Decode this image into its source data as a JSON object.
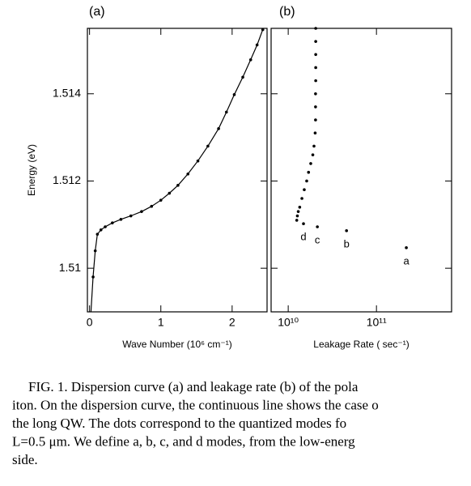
{
  "chart_data": [
    {
      "type": "line",
      "title": "(a)",
      "xlabel": "Wave Number (10⁶ cm⁻¹)",
      "ylabel": "Energy (eV)",
      "xlim": [
        -0.03,
        2.49
      ],
      "xticks": [
        0,
        1,
        2
      ],
      "ylim": [
        1.509,
        1.5155
      ],
      "yticks": [
        1.51,
        1.512,
        1.514
      ],
      "series": [
        {
          "color": "#000000",
          "x": [
            0.02,
            0.05,
            0.08,
            0.11,
            0.16,
            0.22,
            0.32,
            0.44,
            0.58,
            0.73,
            0.87,
            1.0,
            1.12,
            1.24,
            1.38,
            1.52,
            1.66,
            1.81,
            1.92,
            2.03,
            2.15,
            2.26,
            2.35,
            2.43
          ],
          "values": [
            1.509,
            1.5098,
            1.5104,
            1.51078,
            1.51088,
            1.51095,
            1.51104,
            1.51112,
            1.5112,
            1.5113,
            1.51142,
            1.51156,
            1.51172,
            1.5119,
            1.51216,
            1.51246,
            1.5128,
            1.5132,
            1.51358,
            1.51398,
            1.51438,
            1.51478,
            1.51512,
            1.51547
          ]
        }
      ]
    },
    {
      "type": "scatter",
      "title": "(b)",
      "xlabel": "Leakage Rate ( sec⁻¹)",
      "xscale": "log",
      "xlim": [
        6400000000.0,
        710000000000.0
      ],
      "xticks": [
        {
          "value": 10000000000.0,
          "label": "10¹⁰"
        },
        {
          "value": 100000000000.0,
          "label": "10¹¹"
        }
      ],
      "ylim": [
        1.509,
        1.5155
      ],
      "yticks": [
        1.51,
        1.512,
        1.514
      ],
      "series": [
        {
          "color": "#000000",
          "x": [
            20500000000.0,
            20500000000.0,
            20500000000.0,
            20500000000.0,
            20500000000.0,
            20400000000.0,
            20400000000.0,
            20400000000.0,
            20200000000.0,
            19600000000.0,
            19000000000.0,
            18000000000.0,
            17000000000.0,
            16200000000.0,
            15200000000.0,
            14300000000.0,
            13500000000.0,
            13000000000.0,
            12700000000.0,
            12500000000.0
          ],
          "values": [
            1.5155,
            1.5152,
            1.5149,
            1.5146,
            1.5143,
            1.514,
            1.5137,
            1.5134,
            1.5131,
            1.5128,
            1.5126,
            1.5124,
            1.5122,
            1.512,
            1.5118,
            1.5116,
            1.5114,
            1.5113,
            1.5112,
            1.5111
          ]
        },
        {
          "color": "#000000",
          "x": [
            14900000000.0,
            21400000000.0,
            45800000000.0,
            218000000000.0
          ],
          "values": [
            1.51102,
            1.51095,
            1.51086,
            1.51047
          ],
          "labels": [
            "d",
            "c",
            "b",
            "a"
          ]
        }
      ]
    }
  ],
  "caption": [
    "FIG. 1. Dispersion curve (a) and leakage rate (b) of the pola",
    "iton. On the dispersion curve, the continuous line shows the case o",
    "the long QW. The dots correspond to the quantized modes fo",
    "L=0.5 μm. We define a, b, c, and d modes, from the low-energ",
    "side."
  ]
}
